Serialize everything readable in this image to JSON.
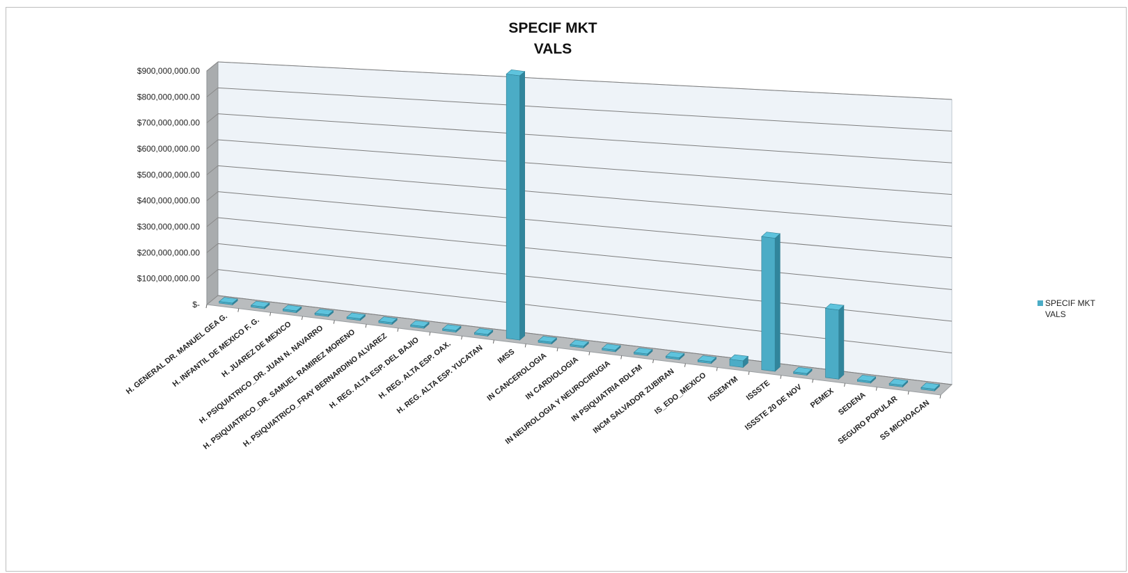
{
  "chart_data": {
    "type": "bar",
    "title_lines": [
      "SPECIF MKT",
      "VALS"
    ],
    "categories": [
      "H. GENERAL DR. MANUEL GEA G.",
      "H. INFANTIL DE MEXICO F. G.",
      "H. JUAREZ DE MEXICO",
      "H. PSIQUIATRICO_DR. JUAN N. NAVARRO",
      "H. PSIQUIATRICO_DR. SAMUEL RAMIREZ MORENO",
      "H. PSIQUIATRICO_FRAY BERNARDINO ALVAREZ",
      "H. REG. ALTA ESP. DEL BAJIO",
      "H. REG. ALTA ESP. OAX.",
      "H. REG. ALTA ESP. YUCATAN",
      "IMSS",
      "IN CANCEROLOGIA",
      "IN CARDIOLOGIA",
      "IN NEUROLOGIA Y NEUROCIRUGIA",
      "IN PSIQUIATRIA RDLFM",
      "INCM SALVADOR ZUBIRAN",
      "IS_EDO_MEXICO",
      "ISSEMYM",
      "ISSSTE",
      "ISSSTE 20 DE NOV",
      "PEMEX",
      "SEDENA",
      "SEGURO POPULAR",
      "SS MICHOACAN"
    ],
    "series": [
      {
        "name": "SPECIF MKT\nVALS",
        "legend_lines": [
          "SPECIF MKT",
          "VALS"
        ],
        "color": "#4bacc6",
        "values": [
          0,
          0,
          0,
          0,
          0,
          0,
          0,
          0,
          0,
          935000000,
          0,
          0,
          0,
          0,
          0,
          6000000,
          22000000,
          440000000,
          0,
          225000000,
          0,
          0,
          0
        ]
      }
    ],
    "y_ticks": [
      "$900,000,000.00",
      "$800,000,000.00",
      "$700,000,000.00",
      "$600,000,000.00",
      "$500,000,000.00",
      "$400,000,000.00",
      "$300,000,000.00",
      "$200,000,000.00",
      "$100,000,000.00",
      "$-"
    ],
    "ylim": [
      0,
      900000000
    ],
    "grid": true,
    "legend_position": "right",
    "style": "3d-column"
  }
}
